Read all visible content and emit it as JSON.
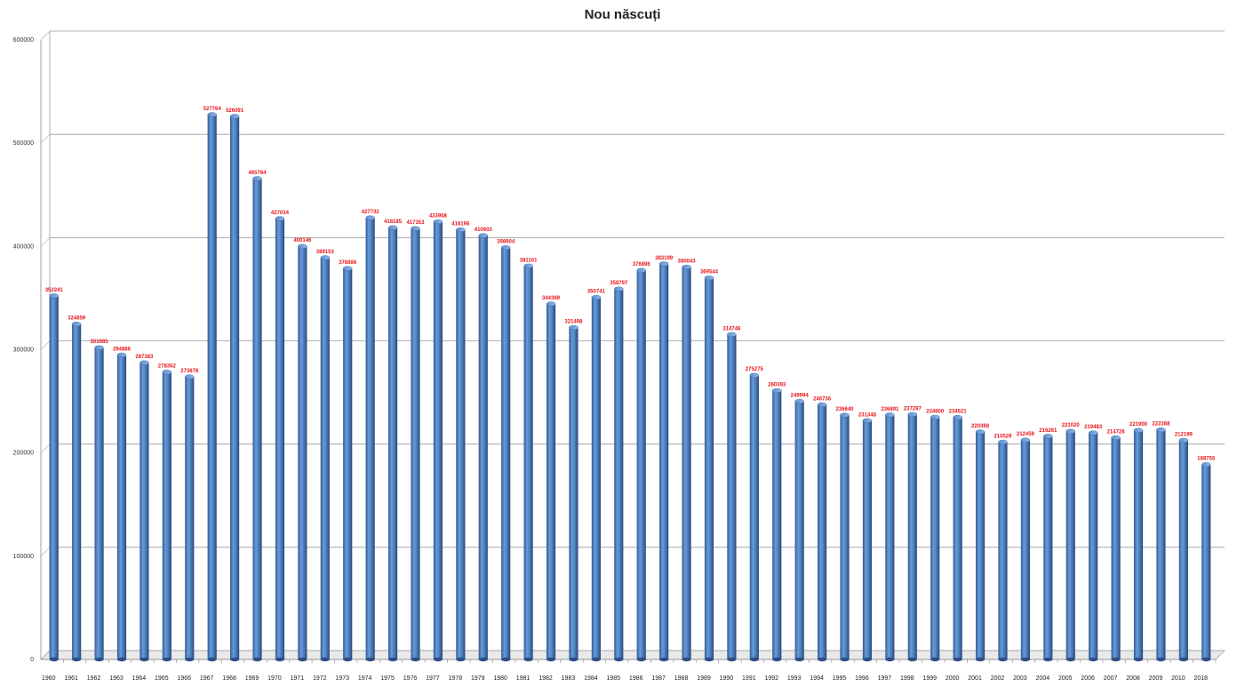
{
  "chart_data": {
    "type": "bar",
    "title": "Nou născuți",
    "xlabel": "",
    "ylabel": "",
    "ylim": [
      0,
      600000
    ],
    "y_ticks": [
      "0",
      "100000",
      "200000",
      "300000",
      "400000",
      "500000",
      "600000"
    ],
    "grid": true,
    "legend": "none",
    "bar_color": "#4a7ebb",
    "label_color": "#e8141a",
    "categories": [
      "1960",
      "1961",
      "1962",
      "1963",
      "1964",
      "1965",
      "1966",
      "1967",
      "1968",
      "1969",
      "1970",
      "1971",
      "1972",
      "1973",
      "1974",
      "1975",
      "1976",
      "1977",
      "1978",
      "1979",
      "1980",
      "1981",
      "1982",
      "1983",
      "1984",
      "1985",
      "1986",
      "1987",
      "1988",
      "1989",
      "1990",
      "1991",
      "1992",
      "1993",
      "1994",
      "1995",
      "1996",
      "1997",
      "1998",
      "1999",
      "2000",
      "2001",
      "2002",
      "2003",
      "2004",
      "2005",
      "2006",
      "2007",
      "2008",
      "2009",
      "2010",
      "2018"
    ],
    "values": [
      352241,
      324859,
      301985,
      294886,
      287383,
      278362,
      273678,
      527764,
      526091,
      465764,
      427034,
      400146,
      389153,
      378696,
      427732,
      418185,
      417353,
      423958,
      416196,
      410603,
      398904,
      381101,
      344369,
      321498,
      350741,
      358797,
      376896,
      383199,
      380043,
      369544,
      314746,
      275275,
      260393,
      249994,
      246736,
      236640,
      231348,
      236891,
      237297,
      234600,
      234521,
      220368,
      210529,
      212459,
      216261,
      221020,
      219483,
      214728,
      221900,
      222388,
      212199,
      188755
    ]
  }
}
